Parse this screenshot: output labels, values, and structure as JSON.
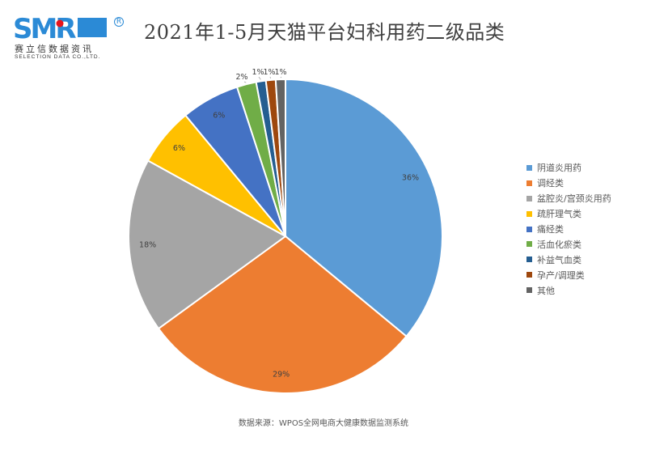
{
  "logo": {
    "mark_text": "SMR",
    "registered": "R",
    "cn_name": "赛立信数据资讯",
    "en_name": "SELECTION DATA CO.,LTD.",
    "brand_color": "#2b8ad6",
    "dot_color": "#e8141c"
  },
  "title": "2021年1-5月天猫平台妇科用药二级品类",
  "source": "数据来源：WPOS全网电商大健康数据监测系统",
  "legend": [
    {
      "label": "阴道炎用药",
      "color": "#5b9bd5"
    },
    {
      "label": "调经类",
      "color": "#ed7d31"
    },
    {
      "label": "盆腔炎/宫颈炎用药",
      "color": "#a5a5a5"
    },
    {
      "label": "疏肝理气类",
      "color": "#ffc000"
    },
    {
      "label": "痛经类",
      "color": "#4472c4"
    },
    {
      "label": "活血化瘀类",
      "color": "#70ad47"
    },
    {
      "label": "补益气血类",
      "color": "#255e91"
    },
    {
      "label": "孕产/调理类",
      "color": "#9e480e"
    },
    {
      "label": "其他",
      "color": "#636363"
    }
  ],
  "chart_data": {
    "type": "pie",
    "title": "2021年1-5月天猫平台妇科用药二级品类",
    "categories": [
      "阴道炎用药",
      "调经类",
      "盆腔炎/宫颈炎用药",
      "疏肝理气类",
      "痛经类",
      "活血化瘀类",
      "补益气血类",
      "孕产/调理类",
      "其他"
    ],
    "values": [
      36,
      29,
      18,
      6,
      6,
      2,
      1,
      1,
      1
    ],
    "labels": [
      "36%",
      "29%",
      "18%",
      "6%",
      "6%",
      "2%",
      "1%",
      "1%",
      "1%"
    ],
    "colors": [
      "#5b9bd5",
      "#ed7d31",
      "#a5a5a5",
      "#ffc000",
      "#4472c4",
      "#70ad47",
      "#255e91",
      "#9e480e",
      "#636363"
    ],
    "start_angle_deg": 0,
    "direction": "clockwise",
    "legend_position": "right",
    "source": "数据来源：WPOS全网电商大健康数据监测系统"
  }
}
